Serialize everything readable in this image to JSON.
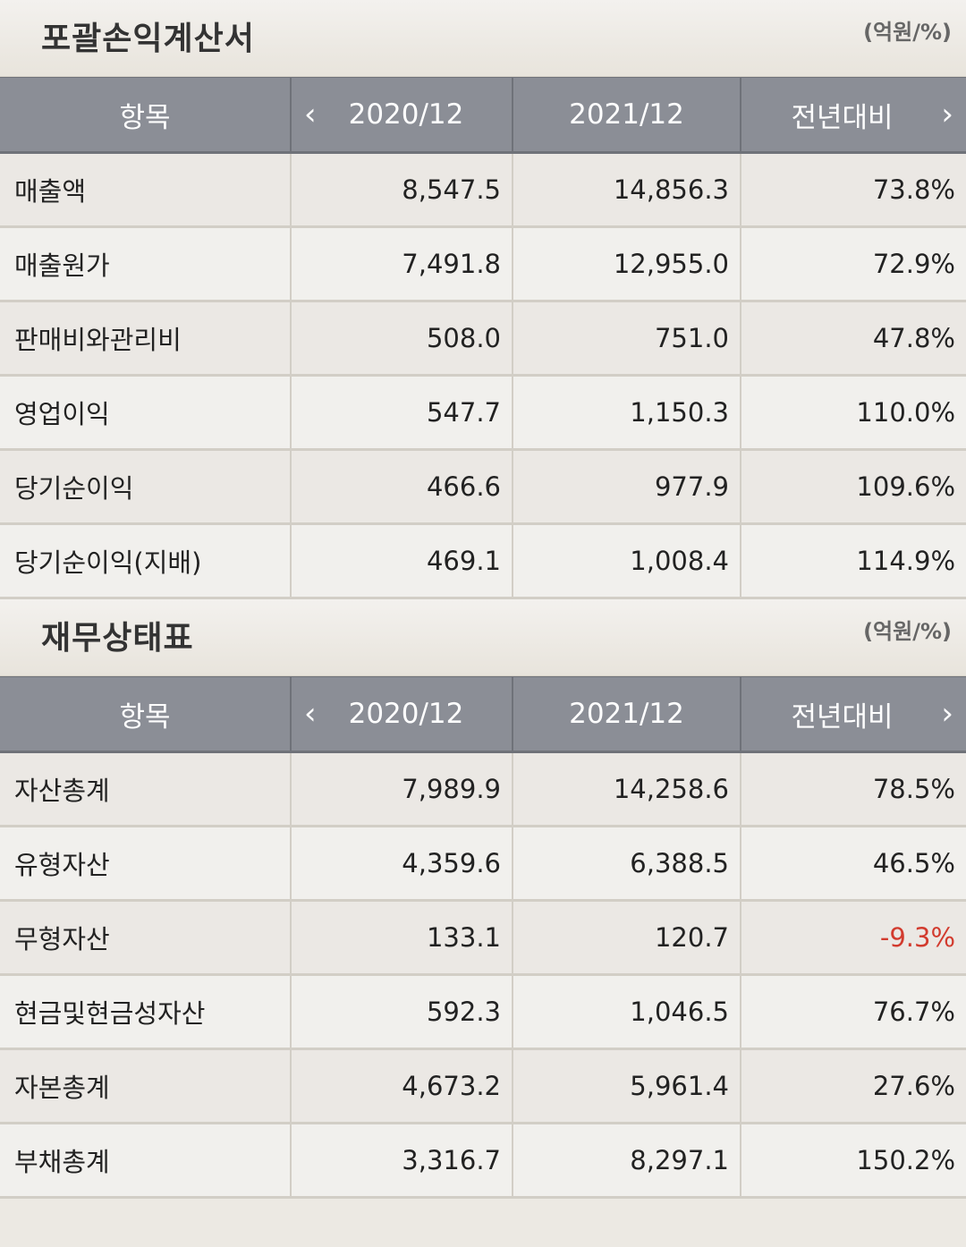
{
  "sections": [
    {
      "title": "포괄손익계산서",
      "unit": "(억원/%)",
      "columns": {
        "item": "항목",
        "prev": "2020/12",
        "cur": "2021/12",
        "yoy": "전년대비"
      },
      "rows": [
        {
          "label": "매출액",
          "prev": "8,547.5",
          "cur": "14,856.3",
          "yoy": "73.8%"
        },
        {
          "label": "매출원가",
          "prev": "7,491.8",
          "cur": "12,955.0",
          "yoy": "72.9%"
        },
        {
          "label": "판매비와관리비",
          "prev": "508.0",
          "cur": "751.0",
          "yoy": "47.8%"
        },
        {
          "label": "영업이익",
          "prev": "547.7",
          "cur": "1,150.3",
          "yoy": "110.0%"
        },
        {
          "label": "당기순이익",
          "prev": "466.6",
          "cur": "977.9",
          "yoy": "109.6%"
        },
        {
          "label": "당기순이익(지배)",
          "prev": "469.1",
          "cur": "1,008.4",
          "yoy": "114.9%"
        }
      ]
    },
    {
      "title": "재무상태표",
      "unit": "(억원/%)",
      "columns": {
        "item": "항목",
        "prev": "2020/12",
        "cur": "2021/12",
        "yoy": "전년대비"
      },
      "rows": [
        {
          "label": "자산총계",
          "prev": "7,989.9",
          "cur": "14,258.6",
          "yoy": "78.5%"
        },
        {
          "label": "유형자산",
          "prev": "4,359.6",
          "cur": "6,388.5",
          "yoy": "46.5%"
        },
        {
          "label": "무형자산",
          "prev": "133.1",
          "cur": "120.7",
          "yoy": "-9.3%"
        },
        {
          "label": "현금및현금성자산",
          "prev": "592.3",
          "cur": "1,046.5",
          "yoy": "76.7%"
        },
        {
          "label": "자본총계",
          "prev": "4,673.2",
          "cur": "5,961.4",
          "yoy": "27.6%"
        },
        {
          "label": "부채총계",
          "prev": "3,316.7",
          "cur": "8,297.1",
          "yoy": "150.2%"
        }
      ]
    }
  ],
  "icons": {
    "prev": "chevron-left-icon",
    "next": "chevron-right-icon"
  },
  "colors": {
    "header_bg": "#8b8e96",
    "negative": "#d23b2e"
  }
}
